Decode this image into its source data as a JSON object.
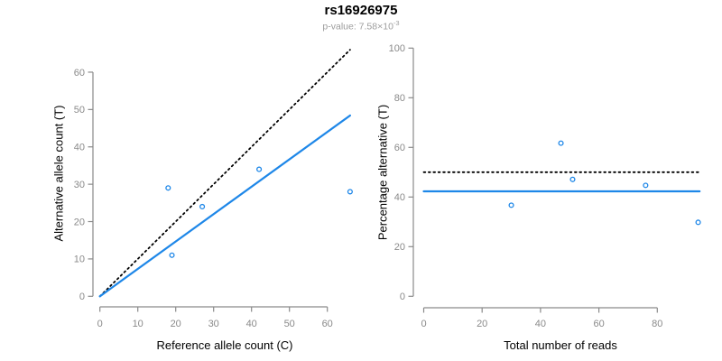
{
  "header": {
    "title": "rs16926975",
    "pvalue_text": "p-value: 7.58×10",
    "pvalue_exp": "-3"
  },
  "colors": {
    "accent_blue": "#1e87e8",
    "axis_gray": "#8a8a8a",
    "tick_label_gray": "#8a8a8a",
    "subtitle_gray": "#9c9c9c",
    "reference_black": "#000000"
  },
  "chart_data": [
    {
      "type": "scatter",
      "xlabel": "Reference allele count (C)",
      "ylabel": "Alternative allele count (T)",
      "xlim": [
        0,
        66
      ],
      "ylim": [
        0,
        66
      ],
      "xticks": [
        0,
        10,
        20,
        30,
        40,
        50,
        60
      ],
      "yticks": [
        0,
        10,
        20,
        30,
        40,
        50,
        60
      ],
      "grid": false,
      "legend": false,
      "points": [
        [
          18,
          29
        ],
        [
          19,
          11
        ],
        [
          27,
          24
        ],
        [
          42,
          34
        ],
        [
          66,
          28
        ]
      ],
      "lines": [
        {
          "name": "identity-line",
          "style": "dotted",
          "color": "#000000",
          "from": [
            0,
            0
          ],
          "to": [
            66,
            66
          ]
        },
        {
          "name": "fit-line",
          "style": "solid",
          "color": "#1e87e8",
          "from": [
            0,
            0
          ],
          "to": [
            66,
            48.4
          ]
        }
      ]
    },
    {
      "type": "scatter",
      "xlabel": "Total number of reads",
      "ylabel": "Percentage alternative (T)",
      "xlim": [
        0,
        94.5
      ],
      "ylim": [
        0,
        100
      ],
      "xticks": [
        0,
        20,
        40,
        60,
        80
      ],
      "yticks": [
        0,
        20,
        40,
        60,
        80,
        100
      ],
      "grid": false,
      "legend": false,
      "points": [
        [
          30,
          36.7
        ],
        [
          47,
          61.7
        ],
        [
          51,
          47.1
        ],
        [
          76,
          44.7
        ],
        [
          94,
          29.8
        ]
      ],
      "lines": [
        {
          "name": "expected-50pct-line",
          "style": "dotted",
          "color": "#000000",
          "from": [
            0,
            50
          ],
          "to": [
            94.5,
            50
          ]
        },
        {
          "name": "mean-percentage-line",
          "style": "solid",
          "color": "#1e87e8",
          "from": [
            0,
            42.3
          ],
          "to": [
            94.5,
            42.3
          ]
        }
      ]
    }
  ]
}
